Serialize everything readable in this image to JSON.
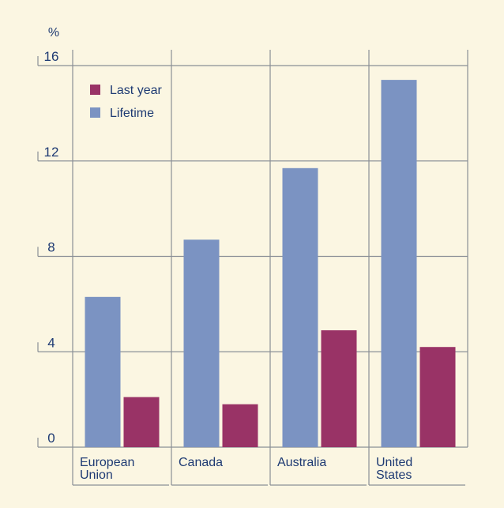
{
  "colors": {
    "background": "#fbf6e2",
    "axis": "#8a8f96",
    "last_year": "#993366",
    "lifetime": "#7b93c2",
    "text": "#1e3a73"
  },
  "chart_data": {
    "type": "bar",
    "unit_label": "%",
    "categories": [
      [
        "European",
        "Union"
      ],
      [
        "Canada"
      ],
      [
        "Australia"
      ],
      [
        "United",
        "States"
      ]
    ],
    "series": [
      {
        "name": "Lifetime",
        "values": [
          6.3,
          8.7,
          11.7,
          15.4
        ]
      },
      {
        "name": "Last year",
        "values": [
          2.1,
          1.8,
          4.9,
          4.2
        ]
      }
    ],
    "legend_order": [
      "Last year",
      "Lifetime"
    ],
    "legend_position": "top-left",
    "ylim": [
      0,
      16
    ],
    "yticks": [
      0,
      4,
      8,
      12,
      16
    ],
    "grid": true
  }
}
